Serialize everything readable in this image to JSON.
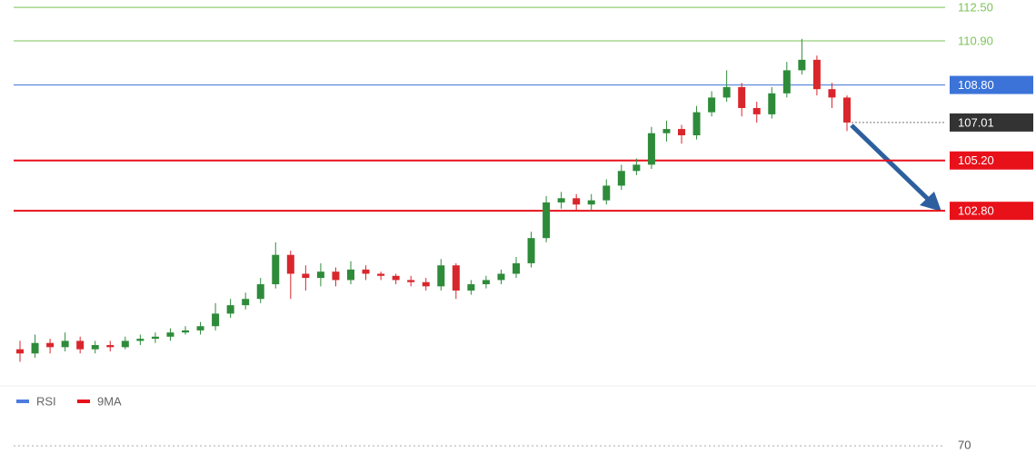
{
  "chart_data": {
    "type": "candlestick",
    "up_color": "#2e8b3a",
    "down_color": "#d9262c",
    "ylim": [
      94.67,
      112.85
    ],
    "open": [
      96.2,
      96.0,
      96.5,
      96.3,
      96.6,
      96.2,
      96.4,
      96.3,
      96.6,
      96.7,
      96.8,
      97.0,
      97.1,
      97.3,
      97.9,
      98.3,
      98.6,
      99.3,
      100.7,
      99.8,
      99.6,
      99.9,
      99.5,
      100.0,
      99.8,
      99.7,
      99.5,
      99.4,
      99.2,
      100.2,
      99.0,
      99.3,
      99.5,
      99.8,
      100.3,
      101.5,
      103.2,
      103.4,
      103.1,
      103.3,
      104.0,
      104.7,
      105.0,
      106.5,
      106.7,
      106.4,
      107.5,
      108.2,
      108.7,
      107.7,
      107.4,
      108.4,
      109.5,
      110.0,
      108.6,
      108.2
    ],
    "high": [
      96.6,
      96.9,
      96.7,
      97.0,
      96.8,
      96.6,
      96.6,
      96.8,
      96.9,
      97.0,
      97.2,
      97.3,
      97.5,
      98.4,
      98.6,
      98.9,
      99.6,
      101.3,
      100.9,
      100.2,
      100.3,
      100.1,
      100.4,
      100.2,
      99.9,
      99.8,
      99.7,
      99.6,
      100.5,
      100.3,
      99.5,
      99.7,
      100.0,
      100.6,
      101.8,
      103.5,
      103.7,
      103.6,
      103.6,
      104.3,
      105.0,
      105.3,
      106.8,
      107.1,
      106.9,
      107.8,
      108.5,
      109.5,
      108.9,
      108.0,
      108.7,
      109.9,
      111.0,
      110.2,
      108.9,
      108.3
    ],
    "low": [
      95.6,
      95.8,
      96.0,
      96.1,
      96.0,
      96.0,
      96.1,
      96.2,
      96.4,
      96.5,
      96.6,
      96.9,
      96.9,
      97.1,
      97.7,
      98.1,
      98.4,
      99.1,
      98.6,
      99.0,
      99.2,
      99.2,
      99.3,
      99.5,
      99.5,
      99.3,
      99.2,
      99.0,
      99.0,
      98.6,
      98.8,
      99.1,
      99.3,
      99.6,
      100.1,
      101.3,
      102.9,
      102.8,
      102.8,
      103.1,
      103.8,
      104.5,
      104.8,
      106.1,
      106.0,
      106.2,
      107.3,
      108.0,
      107.3,
      107.0,
      107.2,
      108.2,
      109.3,
      108.3,
      107.7,
      106.6
    ],
    "close": [
      96.0,
      96.5,
      96.3,
      96.6,
      96.2,
      96.4,
      96.3,
      96.6,
      96.7,
      96.8,
      97.0,
      97.1,
      97.3,
      97.9,
      98.3,
      98.6,
      99.3,
      100.7,
      99.8,
      99.6,
      99.9,
      99.5,
      100.0,
      99.8,
      99.7,
      99.5,
      99.4,
      99.2,
      100.2,
      99.0,
      99.3,
      99.5,
      99.8,
      100.3,
      101.5,
      103.2,
      103.4,
      103.1,
      103.3,
      104.0,
      104.7,
      105.0,
      106.5,
      106.7,
      106.4,
      107.5,
      108.2,
      108.7,
      107.7,
      107.4,
      108.4,
      109.5,
      110.0,
      108.6,
      108.2,
      107.01
    ],
    "levels": [
      {
        "value": 112.5,
        "label": "112.50",
        "color": "#7cc35a",
        "style": "text"
      },
      {
        "value": 110.9,
        "label": "110.90",
        "color": "#7cc35a",
        "style": "text"
      },
      {
        "value": 108.8,
        "label": "108.80",
        "color": "#3b73d9",
        "style": "box"
      },
      {
        "value": 105.2,
        "label": "105.20",
        "color": "#e8111a",
        "style": "box"
      },
      {
        "value": 102.8,
        "label": "102.80",
        "color": "#e8111a",
        "style": "box"
      }
    ],
    "current_price": 107.01,
    "current_color": "#333333",
    "rsi_panel": {
      "ylim": [
        0,
        100
      ],
      "yticks": [
        70
      ],
      "legend": [
        {
          "name": "RSI",
          "color": "#4d7be0"
        },
        {
          "name": "9MA",
          "color": "#e8111a"
        }
      ]
    }
  }
}
